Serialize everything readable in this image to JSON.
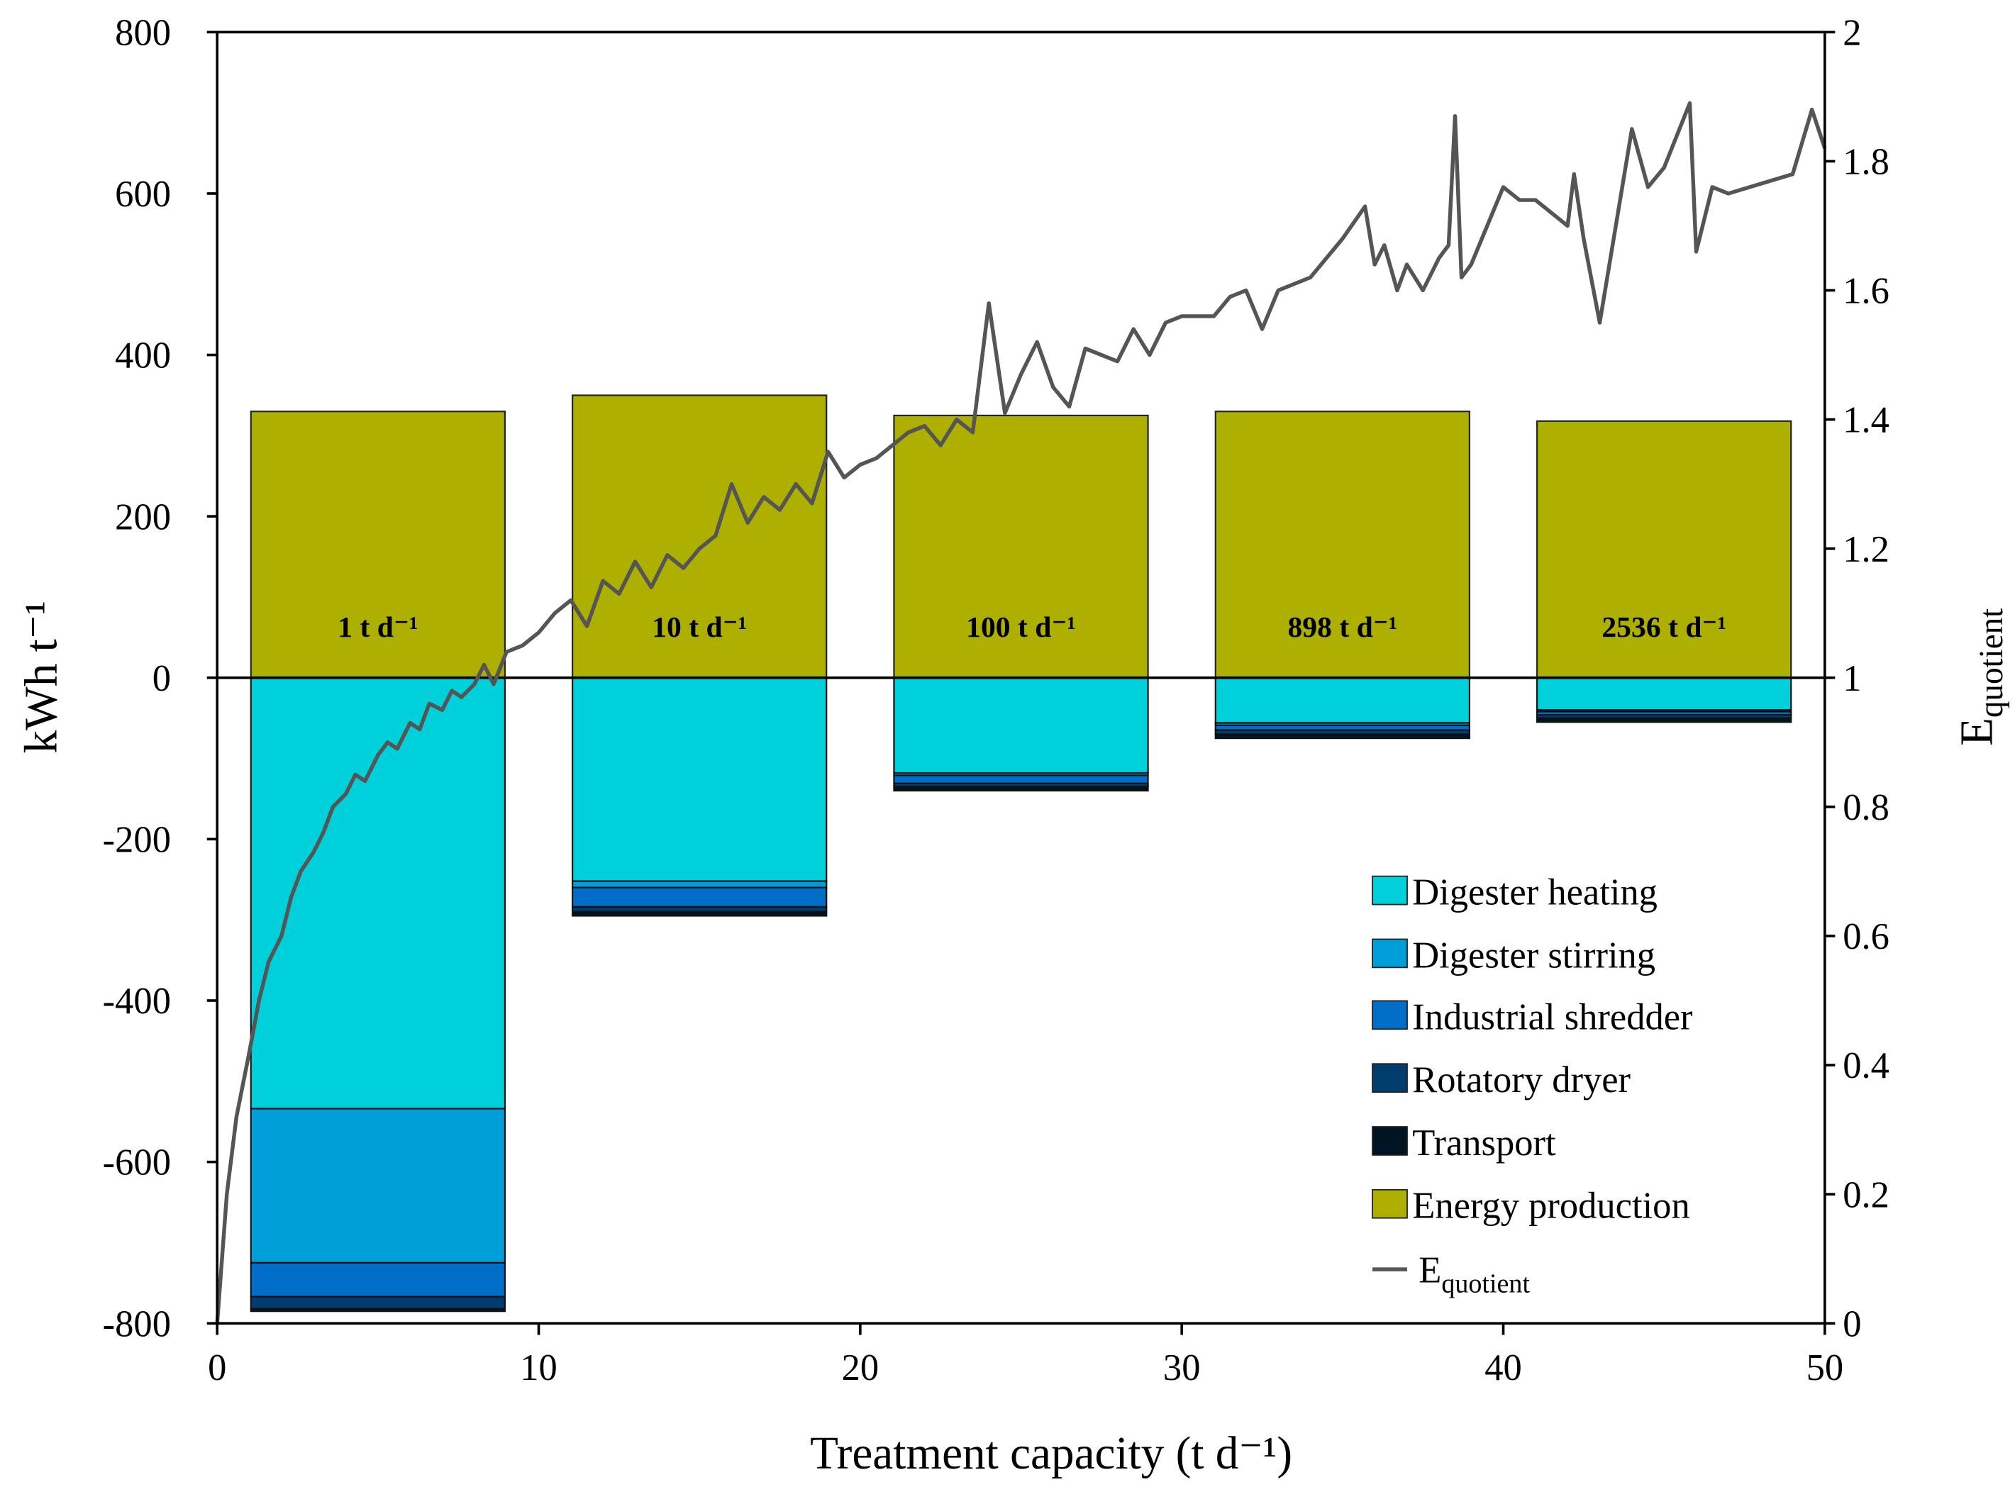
{
  "chart_data": {
    "type": "bar+line",
    "xlabel": "Treatment capacity (t d⁻¹)",
    "ylabel": "kWh t⁻¹",
    "y2label": "E",
    "y2label_sub": "quotient",
    "xlim": [
      0,
      50
    ],
    "ylim": [
      -800,
      800
    ],
    "y2lim": [
      0,
      2
    ],
    "xticks": [
      "0",
      "10",
      "20",
      "30",
      "40",
      "50"
    ],
    "yticks": [
      "-800",
      "-600",
      "-400",
      "-200",
      "0",
      "200",
      "400",
      "600",
      "800"
    ],
    "y2ticks": [
      "0",
      "0.2",
      "0.4",
      "0.6",
      "0.8",
      "1",
      "1.2",
      "1.4",
      "1.6",
      "1.8",
      "2"
    ],
    "bars": [
      {
        "label": "1 t d⁻¹",
        "x_center": 5,
        "values": {
          "Digester heating": -534,
          "Digester stirring": -191,
          "Industrial shredder": -42,
          "Rotatory dryer": -15,
          "Transport": -3,
          "Energy production": 330
        }
      },
      {
        "label": "10 t d⁻¹",
        "x_center": 15,
        "values": {
          "Digester heating": -252,
          "Digester stirring": -8,
          "Industrial shredder": -24,
          "Rotatory dryer": -6,
          "Transport": -5,
          "Energy production": 350
        }
      },
      {
        "label": "100 t d⁻¹",
        "x_center": 25,
        "values": {
          "Digester heating": -118,
          "Digester stirring": -3,
          "Industrial shredder": -10,
          "Rotatory dryer": -4,
          "Transport": -5,
          "Energy production": 325
        }
      },
      {
        "label": "898 t d⁻¹",
        "x_center": 35,
        "values": {
          "Digester heating": -56,
          "Digester stirring": -3,
          "Industrial shredder": -6,
          "Rotatory dryer": -5,
          "Transport": -5,
          "Energy production": 330
        }
      },
      {
        "label": "2536 t d⁻¹",
        "x_center": 45,
        "values": {
          "Digester heating": -40,
          "Digester stirring": -2,
          "Industrial shredder": -4,
          "Rotatory dryer": -4,
          "Transport": -5,
          "Energy production": 318
        }
      }
    ],
    "bar_width": 7.9,
    "series": [
      {
        "name": "Digester heating",
        "color": "#00d0da"
      },
      {
        "name": "Digester stirring",
        "color": "#009fd9"
      },
      {
        "name": "Industrial shredder",
        "color": "#006ec8"
      },
      {
        "name": "Rotatory dryer",
        "color": "#003c6e"
      },
      {
        "name": "Transport",
        "color": "#001522"
      },
      {
        "name": "Energy production",
        "color": "#adb000"
      }
    ],
    "line": {
      "name": "E",
      "name_sub": "quotient",
      "color": "#555555",
      "axis": "right",
      "x": [
        0,
        0.3,
        0.6,
        1,
        1.3,
        1.6,
        2,
        2.3,
        2.6,
        3,
        3.3,
        3.6,
        4,
        4.3,
        4.6,
        5,
        5.3,
        5.6,
        6,
        6.3,
        6.6,
        7,
        7.3,
        7.6,
        8,
        8.3,
        8.6,
        9,
        9.5,
        10,
        10.5,
        11,
        11.5,
        12,
        12.5,
        13,
        13.5,
        14,
        14.5,
        15,
        15.5,
        16,
        16.5,
        17,
        17.5,
        18,
        18.5,
        19,
        19.5,
        20,
        20.5,
        21,
        21.5,
        22,
        22.5,
        23,
        23.5,
        24,
        24.5,
        25,
        25.5,
        26,
        26.5,
        27,
        27.5,
        28,
        28.5,
        29,
        29.5,
        30,
        30.5,
        31,
        31.5,
        32,
        32.5,
        33,
        34,
        35,
        35.7,
        36,
        36.3,
        36.7,
        37,
        37.5,
        38,
        38.3,
        38.5,
        38.7,
        39,
        40,
        40.5,
        41,
        42,
        42.2,
        42.5,
        43,
        44,
        44.5,
        45,
        45.8,
        46,
        46.5,
        47,
        49,
        49.6,
        50
      ],
      "y": [
        0,
        0.2,
        0.32,
        0.42,
        0.5,
        0.56,
        0.6,
        0.66,
        0.7,
        0.73,
        0.76,
        0.8,
        0.82,
        0.85,
        0.84,
        0.88,
        0.9,
        0.89,
        0.93,
        0.92,
        0.96,
        0.95,
        0.98,
        0.97,
        0.99,
        1.02,
        0.99,
        1.04,
        1.05,
        1.07,
        1.1,
        1.12,
        1.08,
        1.15,
        1.13,
        1.18,
        1.14,
        1.19,
        1.17,
        1.2,
        1.22,
        1.3,
        1.24,
        1.28,
        1.26,
        1.3,
        1.27,
        1.35,
        1.31,
        1.33,
        1.34,
        1.36,
        1.38,
        1.39,
        1.36,
        1.4,
        1.38,
        1.58,
        1.41,
        1.47,
        1.52,
        1.45,
        1.42,
        1.51,
        1.5,
        1.49,
        1.54,
        1.5,
        1.55,
        1.56,
        1.56,
        1.56,
        1.59,
        1.6,
        1.54,
        1.6,
        1.62,
        1.68,
        1.73,
        1.64,
        1.67,
        1.6,
        1.64,
        1.6,
        1.65,
        1.67,
        1.87,
        1.62,
        1.64,
        1.76,
        1.74,
        1.74,
        1.7,
        1.78,
        1.68,
        1.55,
        1.85,
        1.76,
        1.79,
        1.89,
        1.66,
        1.76,
        1.75,
        1.78,
        1.88,
        1.82
      ]
    },
    "legend": "bottom-right",
    "grid": false
  }
}
